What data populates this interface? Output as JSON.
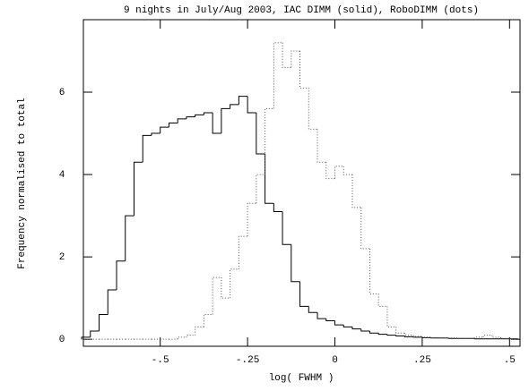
{
  "chart_data": {
    "type": "histogram",
    "title": "9 nights in July/Aug 2003, IAC DIMM (solid), RoboDIMM (dots)",
    "x_label": "log( FWHM )",
    "y_label": "Frequency normalised to total",
    "bins": [
      -0.725,
      -0.7,
      -0.675,
      -0.65,
      -0.625,
      -0.6,
      -0.575,
      -0.55,
      -0.525,
      -0.5,
      -0.475,
      -0.45,
      -0.425,
      -0.4,
      -0.375,
      -0.35,
      -0.325,
      -0.3,
      -0.275,
      -0.25,
      -0.225,
      -0.2,
      -0.175,
      -0.15,
      -0.125,
      -0.1,
      -0.075,
      -0.05,
      -0.025,
      0,
      0.025,
      0.05,
      0.075,
      0.1,
      0.125,
      0.15,
      0.175,
      0.2,
      0.225,
      0.25,
      0.275,
      0.3,
      0.325,
      0.35,
      0.375,
      0.4,
      0.425,
      0.45,
      0.475,
      0.5,
      0.525
    ],
    "series": [
      {
        "name": "IAC DIMM",
        "color": "#000000",
        "style": "solid",
        "values": [
          0.05,
          0.2,
          0.6,
          1.2,
          1.9,
          3.0,
          4.3,
          4.95,
          5.0,
          5.15,
          5.25,
          5.35,
          5.4,
          5.45,
          5.5,
          5.0,
          5.6,
          5.7,
          5.9,
          5.5,
          4.5,
          3.3,
          3.1,
          2.3,
          1.4,
          0.8,
          0.65,
          0.5,
          0.45,
          0.35,
          0.3,
          0.25,
          0.2,
          0.15,
          0.12,
          0.1,
          0.08,
          0.06,
          0.05,
          0.04,
          0.03,
          0.03,
          0.02,
          0.02,
          0.02,
          0.01,
          0.01,
          0.01,
          0.01,
          0.01
        ]
      },
      {
        "name": "RoboDIMM",
        "color": "#555555",
        "style": "dotted",
        "values": [
          0,
          0,
          0,
          0,
          0,
          0,
          0,
          0,
          0,
          0,
          0,
          0.05,
          0.1,
          0.3,
          0.6,
          1.5,
          1.0,
          1.7,
          2.5,
          3.3,
          4.0,
          5.6,
          7.2,
          6.6,
          7.0,
          6.1,
          5.1,
          4.3,
          3.9,
          4.2,
          4.0,
          3.2,
          2.2,
          1.1,
          0.8,
          0.3,
          0.15,
          0.1,
          0.07,
          0.05,
          0.04,
          0.03,
          0.03,
          0.02,
          0.02,
          0.05,
          0.1,
          0.05,
          0.02,
          0.01
        ]
      }
    ],
    "xlim": [
      -0.72,
      0.53
    ],
    "ylim": [
      -0.17,
      7.76
    ],
    "xticks": [
      {
        "value": -0.5,
        "label": "-.5"
      },
      {
        "value": -0.25,
        "label": "-.25"
      },
      0,
      {
        "value": 0.25,
        "label": ".25"
      },
      {
        "value": 0.5,
        "label": ".5"
      }
    ],
    "yticks": [
      0,
      2,
      4,
      6
    ]
  }
}
